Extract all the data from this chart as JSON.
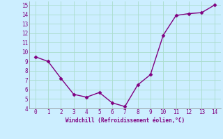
{
  "x": [
    0,
    1,
    2,
    3,
    4,
    5,
    6,
    7,
    8,
    9,
    10,
    11,
    12,
    13,
    14
  ],
  "y": [
    9.5,
    9.0,
    7.2,
    5.5,
    5.2,
    5.7,
    4.6,
    4.2,
    6.5,
    7.6,
    11.8,
    13.9,
    14.1,
    14.2,
    15.0
  ],
  "xlabel": "Windchill (Refroidissement éolien,°C)",
  "xlim": [
    -0.5,
    14.5
  ],
  "ylim": [
    4,
    15.4
  ],
  "yticks": [
    4,
    5,
    6,
    7,
    8,
    9,
    10,
    11,
    12,
    13,
    14,
    15
  ],
  "xticks": [
    0,
    1,
    2,
    3,
    4,
    5,
    6,
    7,
    8,
    9,
    10,
    11,
    12,
    13,
    14
  ],
  "line_color": "#800080",
  "marker_color": "#800080",
  "bg_color": "#cceeff",
  "grid_color": "#aaddcc",
  "tick_color": "#800080",
  "label_color": "#800080",
  "marker": "D",
  "markersize": 2.5,
  "linewidth": 1.0
}
